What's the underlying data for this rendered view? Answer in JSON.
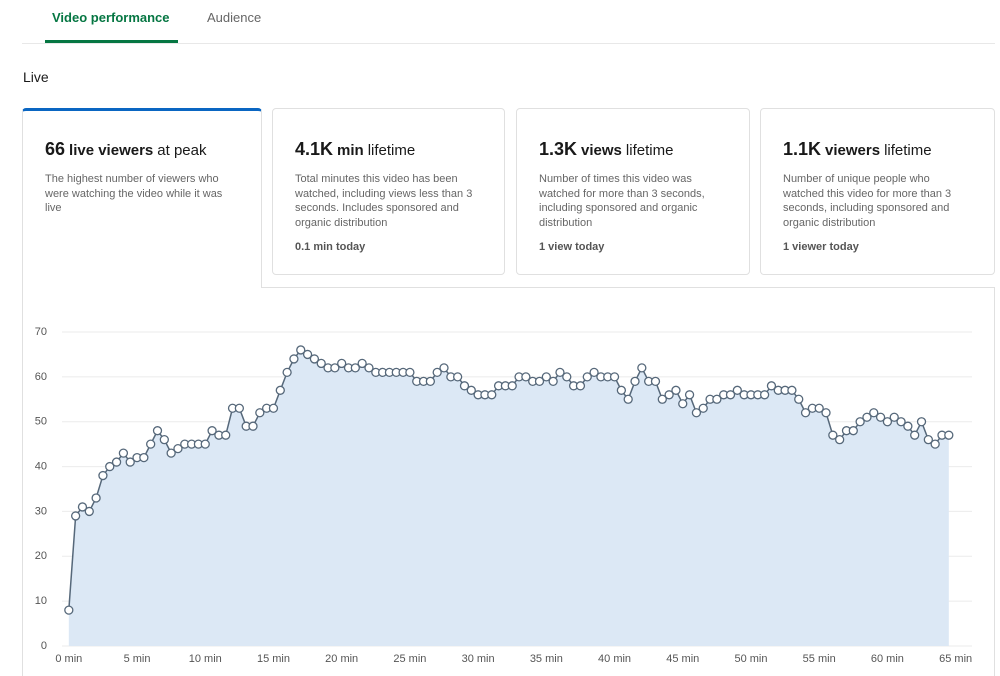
{
  "tabs": [
    "Video performance",
    "Audience"
  ],
  "section": "Live",
  "cards": [
    {
      "value": "66",
      "unit": "live viewers",
      "suffix": "at peak",
      "description": "The highest number of viewers who were watching the video while it was live"
    },
    {
      "value": "4.1K",
      "unit": "min",
      "suffix": "lifetime",
      "description": "Total minutes this video has been watched, including views less than 3 seconds. Includes sponsored and organic distribution",
      "today": "0.1 min today"
    },
    {
      "value": "1.3K",
      "unit": "views",
      "suffix": "lifetime",
      "description": "Number of times this video was watched for more than 3 seconds, including sponsored and organic distribution",
      "today": "1 view today"
    },
    {
      "value": "1.1K",
      "unit": "viewers",
      "suffix": "lifetime",
      "description": "Number of unique people who watched this video for more than 3 seconds, including sponsored and organic distribution",
      "today": "1 viewer today"
    }
  ],
  "chart_data": {
    "type": "line",
    "color": "#56687a",
    "fill": "#dce8f5",
    "grid": true,
    "x": [
      0,
      0.5,
      1,
      1.5,
      2,
      2.5,
      3,
      3.5,
      4,
      4.5,
      5,
      5.5,
      6,
      6.5,
      7,
      7.5,
      8,
      8.5,
      9,
      9.5,
      10,
      10.5,
      11,
      11.5,
      12,
      12.5,
      13,
      13.5,
      14,
      14.5,
      15,
      15.5,
      16,
      16.5,
      17,
      17.5,
      18,
      18.5,
      19,
      19.5,
      20,
      20.5,
      21,
      21.5,
      22,
      22.5,
      23,
      23.5,
      24,
      24.5,
      25,
      25.5,
      26,
      26.5,
      27,
      27.5,
      28,
      28.5,
      29,
      29.5,
      30,
      30.5,
      31,
      31.5,
      32,
      32.5,
      33,
      33.5,
      34,
      34.5,
      35,
      35.5,
      36,
      36.5,
      37,
      37.5,
      38,
      38.5,
      39,
      39.5,
      40,
      40.5,
      41,
      41.5,
      42,
      42.5,
      43,
      43.5,
      44,
      44.5,
      45,
      45.5,
      46,
      46.5,
      47,
      47.5,
      48,
      48.5,
      49,
      49.5,
      50,
      50.5,
      51,
      51.5,
      52,
      52.5,
      53,
      53.5,
      54,
      54.5,
      55,
      55.5,
      56,
      56.5,
      57,
      57.5,
      58,
      58.5,
      59,
      59.5,
      60,
      60.5,
      61,
      61.5,
      62,
      62.5,
      63,
      63.5,
      64,
      64.5
    ],
    "values": [
      8,
      29,
      31,
      30,
      33,
      38,
      40,
      41,
      43,
      41,
      42,
      42,
      45,
      48,
      46,
      43,
      44,
      45,
      45,
      45,
      45,
      48,
      47,
      47,
      53,
      53,
      49,
      49,
      52,
      53,
      53,
      57,
      61,
      64,
      66,
      65,
      64,
      63,
      62,
      62,
      63,
      62,
      62,
      63,
      62,
      61,
      61,
      61,
      61,
      61,
      61,
      59,
      59,
      59,
      61,
      62,
      60,
      60,
      58,
      57,
      56,
      56,
      56,
      58,
      58,
      58,
      60,
      60,
      59,
      59,
      60,
      59,
      61,
      60,
      58,
      58,
      60,
      61,
      60,
      60,
      60,
      57,
      55,
      59,
      62,
      59,
      59,
      55,
      56,
      57,
      54,
      56,
      52,
      53,
      55,
      55,
      56,
      56,
      57,
      56,
      56,
      56,
      56,
      58,
      57,
      57,
      57,
      55,
      52,
      53,
      53,
      52,
      47,
      46,
      48,
      48,
      50,
      51,
      52,
      51,
      50,
      51,
      50,
      49,
      47,
      50,
      46,
      45,
      47,
      47
    ],
    "xlim": [
      -0.5,
      66.2
    ],
    "xticks": [
      {
        "value": 0,
        "label": "0 min"
      },
      {
        "value": 5,
        "label": "5 min"
      },
      {
        "value": 10,
        "label": "10 min"
      },
      {
        "value": 15,
        "label": "15 min"
      },
      {
        "value": 20,
        "label": "20 min"
      },
      {
        "value": 25,
        "label": "25 min"
      },
      {
        "value": 30,
        "label": "30 min"
      },
      {
        "value": 35,
        "label": "35 min"
      },
      {
        "value": 40,
        "label": "40 min"
      },
      {
        "value": 45,
        "label": "45 min"
      },
      {
        "value": 50,
        "label": "50 min"
      },
      {
        "value": 55,
        "label": "55 min"
      },
      {
        "value": 60,
        "label": "60 min"
      },
      {
        "value": 65,
        "label": "65 min"
      }
    ],
    "ylim": [
      0,
      70
    ],
    "yticks": [
      0,
      10,
      20,
      30,
      40,
      50,
      60,
      70
    ]
  }
}
